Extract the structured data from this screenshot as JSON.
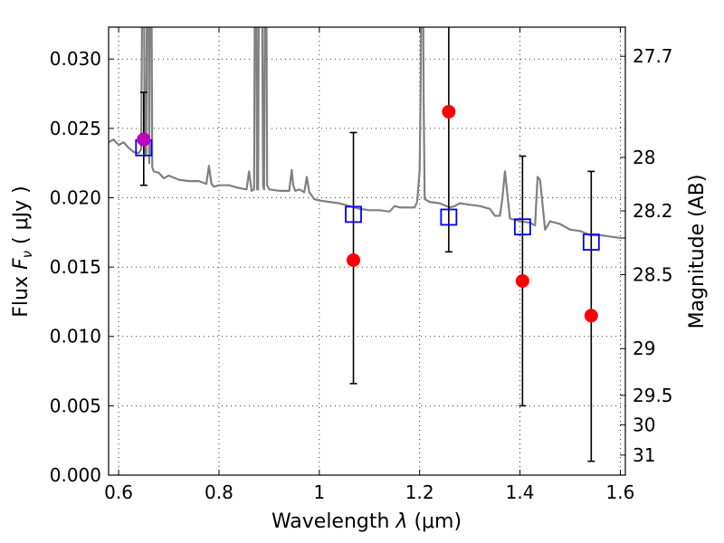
{
  "chart_data": {
    "type": "scatter",
    "title": "",
    "xlabel": {
      "prefix": "Wavelength ",
      "symbol": "λ",
      "unit": " (μm)"
    },
    "ylabel": {
      "prefix": "Flux ",
      "symbol": "F",
      "subscript": "ν",
      "unit": " ( μJy )"
    },
    "ylabel_right": "Magnitude (AB)",
    "xlim": [
      0.58,
      1.61
    ],
    "ylim": [
      0.0,
      0.0323
    ],
    "grid": true,
    "x_ticks": [
      0.6,
      0.8,
      1.0,
      1.2,
      1.4,
      1.6
    ],
    "x_tick_labels": [
      "0.6",
      "0.8",
      "1",
      "1.2",
      "1.4",
      "1.6"
    ],
    "y_ticks": [
      0.0,
      0.005,
      0.01,
      0.015,
      0.02,
      0.025,
      0.03
    ],
    "y_tick_labels": [
      "0.000",
      "0.005",
      "0.010",
      "0.015",
      "0.020",
      "0.025",
      "0.030"
    ],
    "right_ticks": [
      {
        "label": "27.7",
        "mag": 27.7
      },
      {
        "label": "28",
        "mag": 28.0
      },
      {
        "label": "28.2",
        "mag": 28.2
      },
      {
        "label": "28.5",
        "mag": 28.5
      },
      {
        "label": "29",
        "mag": 29.0
      },
      {
        "label": "29.5",
        "mag": 29.5
      },
      {
        "label": "30",
        "mag": 30.0
      },
      {
        "label": "31",
        "mag": 31.0
      }
    ],
    "series": [
      {
        "kind": "line",
        "color": "#808080",
        "x": [
          0.58,
          0.59,
          0.6,
          0.61,
          0.62,
          0.63,
          0.64,
          0.645,
          0.648,
          0.65,
          0.652,
          0.655,
          0.657,
          0.659,
          0.661,
          0.663,
          0.665,
          0.667,
          0.67,
          0.68,
          0.69,
          0.7,
          0.72,
          0.74,
          0.76,
          0.775,
          0.78,
          0.785,
          0.79,
          0.8,
          0.82,
          0.84,
          0.855,
          0.86,
          0.865,
          0.87,
          0.872,
          0.874,
          0.876,
          0.878,
          0.88,
          0.885,
          0.888,
          0.89,
          0.892,
          0.894,
          0.896,
          0.9,
          0.92,
          0.94,
          0.945,
          0.948,
          0.952,
          0.96,
          0.97,
          0.975,
          0.98,
          0.99,
          1.0,
          1.02,
          1.04,
          1.06,
          1.08,
          1.1,
          1.12,
          1.14,
          1.15,
          1.16,
          1.17,
          1.18,
          1.19,
          1.195,
          1.2,
          1.202,
          1.204,
          1.206,
          1.208,
          1.21,
          1.22,
          1.24,
          1.26,
          1.27,
          1.28,
          1.3,
          1.32,
          1.34,
          1.35,
          1.36,
          1.365,
          1.37,
          1.38,
          1.4,
          1.42,
          1.43,
          1.435,
          1.44,
          1.45,
          1.46,
          1.48,
          1.5,
          1.52,
          1.54,
          1.56,
          1.58,
          1.6,
          1.61
        ],
        "y": [
          0.024,
          0.0242,
          0.0238,
          0.024,
          0.0236,
          0.0233,
          0.0232,
          0.0235,
          0.04,
          0.04,
          0.023,
          0.0232,
          0.04,
          0.04,
          0.0225,
          0.04,
          0.04,
          0.0222,
          0.0219,
          0.0218,
          0.0214,
          0.0216,
          0.0213,
          0.0212,
          0.0212,
          0.021,
          0.0223,
          0.021,
          0.0208,
          0.0209,
          0.0209,
          0.0207,
          0.0206,
          0.0219,
          0.0205,
          0.0206,
          0.04,
          0.04,
          0.0206,
          0.0206,
          0.04,
          0.04,
          0.0208,
          0.0206,
          0.04,
          0.04,
          0.0209,
          0.0206,
          0.0205,
          0.0205,
          0.022,
          0.0209,
          0.0205,
          0.0206,
          0.0204,
          0.0215,
          0.0204,
          0.0199,
          0.0198,
          0.0197,
          0.0196,
          0.0194,
          0.0192,
          0.0191,
          0.0191,
          0.019,
          0.0194,
          0.0193,
          0.0193,
          0.0193,
          0.0193,
          0.0197,
          0.022,
          0.028,
          0.04,
          0.04,
          0.027,
          0.0199,
          0.0197,
          0.0196,
          0.0193,
          0.0194,
          0.0196,
          0.0195,
          0.0194,
          0.0192,
          0.0187,
          0.0187,
          0.02,
          0.0219,
          0.0185,
          0.0183,
          0.0182,
          0.018,
          0.0215,
          0.0213,
          0.0177,
          0.0183,
          0.0181,
          0.0177,
          0.0176,
          0.0173,
          0.0173,
          0.0172,
          0.0171,
          0.0171
        ]
      },
      {
        "kind": "markers",
        "name": "",
        "marker": "square-open",
        "color": "#0000ff",
        "x": [
          0.65,
          1.068,
          1.258,
          1.405,
          1.542
        ],
        "y": [
          0.0236,
          0.0188,
          0.0186,
          0.0179,
          0.0168
        ]
      },
      {
        "kind": "markers",
        "name": "",
        "marker": "circle",
        "color": "#ff0000",
        "x": [
          0.65,
          1.068,
          1.258,
          1.405,
          1.542
        ],
        "y": [
          0.0242,
          0.0155,
          0.0262,
          0.014,
          0.0115
        ],
        "yerr_low": [
          0.0209,
          0.0066,
          0.0161,
          0.005,
          0.001
        ],
        "yerr_high": [
          0.0276,
          0.0247,
          0.033,
          0.023,
          0.0219
        ],
        "errorbar_color": "#000000"
      },
      {
        "kind": "markers",
        "name": "",
        "marker": "circle",
        "color": "#c000c0",
        "x": [
          0.65
        ],
        "y": [
          0.0242
        ]
      }
    ]
  }
}
